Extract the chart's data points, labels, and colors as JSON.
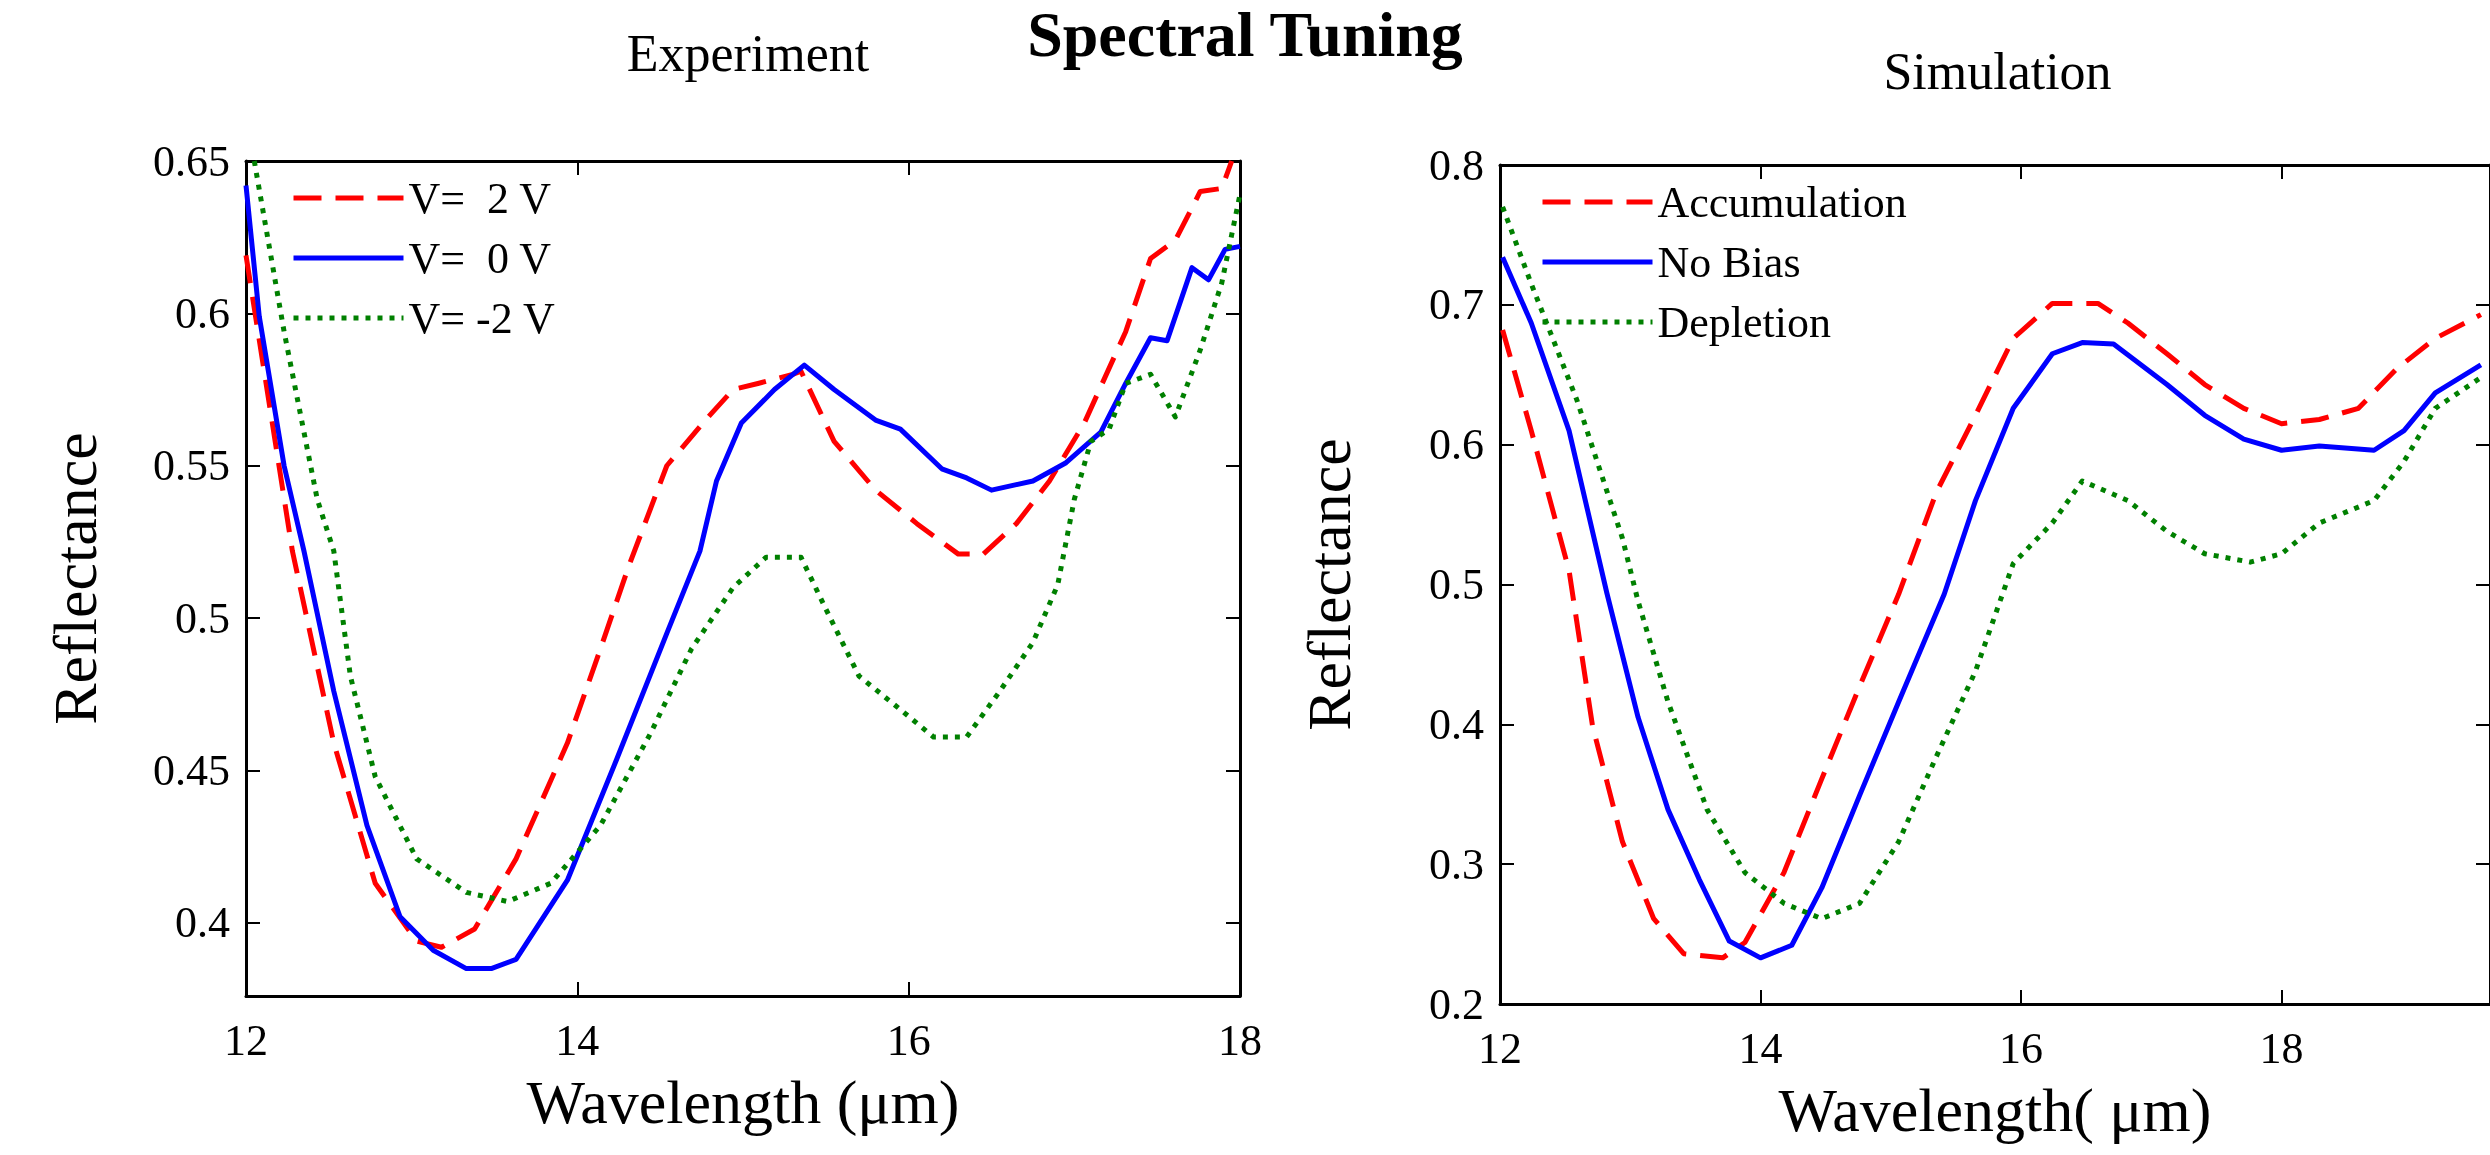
{
  "chart_data": [
    {
      "type": "line",
      "title": "Spectral Tuning",
      "subtitle": "Experiment",
      "xlabel": "Wavelength (μm)",
      "ylabel": "Reflectance",
      "xlim": [
        12,
        18
      ],
      "xticks": [
        12,
        14,
        16,
        18
      ],
      "ylim": [
        0.376,
        0.65
      ],
      "yticks": [
        0.4,
        0.45,
        0.5,
        0.55,
        0.6,
        0.65
      ],
      "grid": false,
      "legend": "top left",
      "marker": "none",
      "series": [
        {
          "name": "V=  2 V",
          "color": "#ff0000",
          "line_style": "dashed",
          "x": [
            12,
            12.28,
            12.53,
            12.78,
            13.03,
            13.18,
            13.38,
            13.63,
            13.94,
            14.14,
            14.31,
            14.54,
            14.79,
            14.94,
            15.09,
            15.3,
            15.35,
            15.55,
            15.8,
            16.05,
            16.3,
            16.45,
            16.65,
            16.85,
            17.06,
            17.31,
            17.46,
            17.61,
            17.76,
            17.89,
            17.95
          ],
          "values": [
            0.619,
            0.522,
            0.459,
            0.413,
            0.394,
            0.392,
            0.398,
            0.421,
            0.459,
            0.49,
            0.517,
            0.55,
            0.566,
            0.575,
            0.577,
            0.58,
            0.581,
            0.558,
            0.542,
            0.531,
            0.521,
            0.521,
            0.531,
            0.545,
            0.564,
            0.594,
            0.618,
            0.624,
            0.64,
            0.641,
            0.65
          ]
        },
        {
          "name": "V=  0 V",
          "color": "#0000ff",
          "line_style": "solid",
          "x": [
            12,
            12.08,
            12.23,
            12.35,
            12.53,
            12.73,
            12.93,
            13.13,
            13.33,
            13.48,
            13.63,
            13.94,
            14.24,
            14.54,
            14.74,
            14.84,
            14.99,
            15.19,
            15.37,
            15.55,
            15.8,
            15.95,
            16.2,
            16.35,
            16.5,
            16.75,
            16.95,
            17.16,
            17.31,
            17.46,
            17.56,
            17.71,
            17.81,
            17.91,
            18
          ],
          "values": [
            0.642,
            0.599,
            0.55,
            0.522,
            0.476,
            0.432,
            0.402,
            0.391,
            0.385,
            0.385,
            0.388,
            0.414,
            0.454,
            0.495,
            0.522,
            0.545,
            0.564,
            0.575,
            0.583,
            0.575,
            0.565,
            0.562,
            0.549,
            0.546,
            0.542,
            0.545,
            0.551,
            0.561,
            0.577,
            0.592,
            0.591,
            0.615,
            0.611,
            0.621,
            0.622
          ]
        },
        {
          "name": "V= -2 V",
          "color": "#008000",
          "line_style": "dotted",
          "x": [
            12.05,
            12.23,
            12.43,
            12.53,
            12.63,
            12.78,
            13.03,
            13.33,
            13.58,
            13.84,
            14.14,
            14.44,
            14.69,
            14.94,
            15.14,
            15.35,
            15.5,
            15.7,
            15.95,
            16.15,
            16.35,
            16.55,
            16.75,
            16.9,
            17,
            17.1,
            17.21,
            17.31,
            17.46,
            17.61,
            17.76,
            17.89,
            18
          ],
          "values": [
            0.65,
            0.594,
            0.539,
            0.522,
            0.481,
            0.448,
            0.421,
            0.41,
            0.407,
            0.413,
            0.432,
            0.462,
            0.49,
            0.51,
            0.52,
            0.52,
            0.503,
            0.481,
            0.47,
            0.461,
            0.461,
            0.476,
            0.492,
            0.511,
            0.539,
            0.558,
            0.562,
            0.577,
            0.58,
            0.566,
            0.588,
            0.61,
            0.639
          ]
        }
      ]
    },
    {
      "type": "line",
      "subtitle": "Simulation",
      "xlabel": "Wavelength( μm)",
      "ylabel": "Reflectance",
      "xlim": [
        12,
        19.6
      ],
      "xticks": [
        12,
        14,
        16,
        18
      ],
      "ylim": [
        0.2,
        0.8
      ],
      "yticks": [
        0.2,
        0.3,
        0.4,
        0.5,
        0.6,
        0.7,
        0.8
      ],
      "grid": false,
      "legend": "top left",
      "marker": "none",
      "series": [
        {
          "name": "Accumulation",
          "color": "#ff0000",
          "line_style": "dashed",
          "x": [
            12.02,
            12.24,
            12.53,
            12.71,
            12.94,
            13.18,
            13.41,
            13.71,
            13.88,
            14.18,
            14.47,
            14.76,
            15.06,
            15.35,
            15.65,
            15.94,
            16.24,
            16.59,
            16.82,
            17.12,
            17.41,
            17.71,
            18,
            18.29,
            18.59,
            18.88,
            19.18,
            19.53
          ],
          "values": [
            0.682,
            0.61,
            0.51,
            0.399,
            0.316,
            0.261,
            0.236,
            0.233,
            0.244,
            0.294,
            0.361,
            0.427,
            0.493,
            0.566,
            0.621,
            0.676,
            0.701,
            0.701,
            0.687,
            0.665,
            0.643,
            0.626,
            0.615,
            0.618,
            0.626,
            0.654,
            0.676,
            0.693
          ]
        },
        {
          "name": "No Bias",
          "color": "#0000ff",
          "line_style": "solid",
          "x": [
            12.02,
            12.24,
            12.53,
            12.82,
            13.06,
            13.29,
            13.53,
            13.76,
            14,
            14.24,
            14.47,
            14.76,
            15.06,
            15.41,
            15.65,
            15.94,
            16.24,
            16.47,
            16.71,
            17.12,
            17.41,
            17.71,
            18,
            18.29,
            18.71,
            18.94,
            19.18,
            19.53
          ],
          "values": [
            0.734,
            0.687,
            0.61,
            0.494,
            0.405,
            0.339,
            0.289,
            0.245,
            0.233,
            0.242,
            0.283,
            0.349,
            0.416,
            0.493,
            0.56,
            0.626,
            0.665,
            0.673,
            0.672,
            0.643,
            0.621,
            0.604,
            0.596,
            0.599,
            0.596,
            0.61,
            0.637,
            0.657
          ]
        },
        {
          "name": "Depletion",
          "color": "#008000",
          "line_style": "dotted",
          "x": [
            12.02,
            12.24,
            12.59,
            12.94,
            13.06,
            13.29,
            13.59,
            13.88,
            14.18,
            14.47,
            14.76,
            15.06,
            15.35,
            15.65,
            15.94,
            16.24,
            16.47,
            16.82,
            17.12,
            17.41,
            17.76,
            18,
            18.29,
            18.71,
            18.94,
            19.18,
            19.53
          ],
          "values": [
            0.77,
            0.715,
            0.632,
            0.533,
            0.488,
            0.416,
            0.339,
            0.294,
            0.272,
            0.261,
            0.272,
            0.316,
            0.377,
            0.438,
            0.515,
            0.544,
            0.574,
            0.56,
            0.538,
            0.522,
            0.516,
            0.522,
            0.544,
            0.56,
            0.588,
            0.626,
            0.648
          ]
        }
      ]
    }
  ]
}
